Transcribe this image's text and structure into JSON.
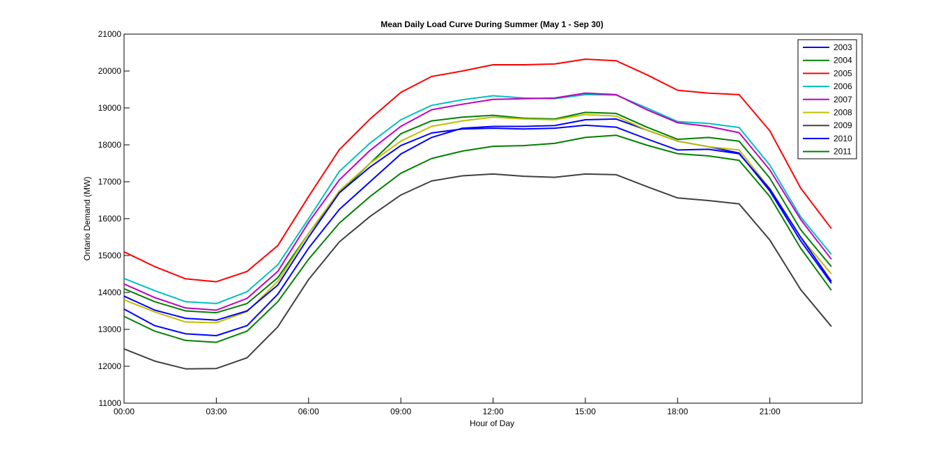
{
  "chart_data": {
    "type": "line",
    "title": "Mean Daily Load Curve During Summer (May 1 - Sep 30)",
    "xlabel": "Hour of Day",
    "ylabel": "Ontario Demand (MW)",
    "xlim": [
      0,
      24
    ],
    "ylim": [
      11000,
      21000
    ],
    "x": [
      0,
      1,
      2,
      3,
      4,
      5,
      6,
      7,
      8,
      9,
      10,
      11,
      12,
      13,
      14,
      15,
      16,
      17,
      18,
      19,
      20,
      21,
      22,
      23
    ],
    "x_ticks": [
      0,
      3,
      6,
      9,
      12,
      15,
      18,
      21,
      24
    ],
    "x_tick_labels": [
      "00:00",
      "03:00",
      "06:00",
      "09:00",
      "12:00",
      "15:00",
      "18:00",
      "21:00",
      ""
    ],
    "y_ticks": [
      11000,
      12000,
      13000,
      14000,
      15000,
      16000,
      17000,
      18000,
      19000,
      20000,
      21000
    ],
    "y_tick_labels": [
      "11000",
      "12000",
      "13000",
      "14000",
      "15000",
      "16000",
      "17000",
      "18000",
      "19000",
      "20000",
      "21000"
    ],
    "grid": false,
    "legend_position": "top-right",
    "series": [
      {
        "name": "2003",
        "color": "#0000ff",
        "values": [
          13550,
          13100,
          12880,
          12830,
          13100,
          13950,
          15200,
          16250,
          17000,
          17750,
          18200,
          18450,
          18500,
          18500,
          18520,
          18680,
          18700,
          18400,
          18100,
          17950,
          17780,
          16750,
          15400,
          14250
        ]
      },
      {
        "name": "2004",
        "color": "#008000",
        "values": [
          14100,
          13750,
          13500,
          13450,
          13700,
          14400,
          15600,
          16700,
          17500,
          18300,
          18650,
          18750,
          18800,
          18720,
          18700,
          18880,
          18850,
          18480,
          18150,
          18200,
          18100,
          17100,
          15700,
          14700
        ]
      },
      {
        "name": "2005",
        "color": "#ff0000",
        "values": [
          15100,
          14700,
          14370,
          14290,
          14570,
          15270,
          16600,
          17870,
          18700,
          19420,
          19850,
          20000,
          20170,
          20170,
          20190,
          20320,
          20280,
          19900,
          19480,
          19400,
          19360,
          18380,
          16830,
          15730
        ]
      },
      {
        "name": "2006",
        "color": "#00bfbf",
        "values": [
          14380,
          14050,
          13750,
          13700,
          14020,
          14750,
          16000,
          17280,
          18050,
          18680,
          19070,
          19220,
          19330,
          19270,
          19250,
          19360,
          19350,
          19000,
          18630,
          18580,
          18470,
          17450,
          16050,
          15030
        ]
      },
      {
        "name": "2007",
        "color": "#bf00bf",
        "values": [
          14230,
          13860,
          13580,
          13520,
          13840,
          14570,
          15900,
          17050,
          17850,
          18500,
          18950,
          19100,
          19230,
          19250,
          19270,
          19400,
          19360,
          18950,
          18600,
          18500,
          18330,
          17320,
          15980,
          14900
        ]
      },
      {
        "name": "2008",
        "color": "#bfbf00",
        "values": [
          13800,
          13470,
          13200,
          13180,
          13480,
          14300,
          15600,
          16750,
          17500,
          18100,
          18500,
          18650,
          18750,
          18700,
          18680,
          18820,
          18780,
          18400,
          18100,
          17950,
          17860,
          16820,
          15500,
          14500
        ]
      },
      {
        "name": "2009",
        "color": "#404040",
        "values": [
          12470,
          12140,
          11930,
          11940,
          12230,
          13070,
          14350,
          15370,
          16060,
          16640,
          17020,
          17160,
          17210,
          17150,
          17120,
          17210,
          17190,
          16870,
          16560,
          16490,
          16400,
          15420,
          14080,
          13080
        ]
      },
      {
        "name": "2010",
        "color": "#0000ff",
        "values": [
          13900,
          13520,
          13300,
          13250,
          13500,
          14200,
          15500,
          16700,
          17400,
          17980,
          18320,
          18430,
          18450,
          18430,
          18450,
          18530,
          18480,
          18160,
          17860,
          17880,
          17760,
          16800,
          15500,
          14300
        ]
      },
      {
        "name": "2011",
        "color": "#008000",
        "values": [
          13350,
          12950,
          12700,
          12650,
          12950,
          13750,
          14900,
          15880,
          16600,
          17230,
          17630,
          17830,
          17960,
          17980,
          18040,
          18200,
          18260,
          17990,
          17760,
          17700,
          17580,
          16600,
          15200,
          14060
        ]
      }
    ]
  }
}
